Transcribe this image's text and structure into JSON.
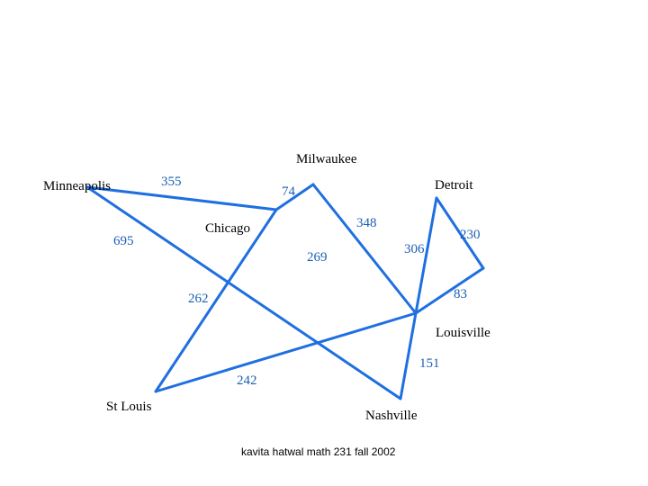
{
  "nodes": [
    {
      "label": "Minneapolis"
    },
    {
      "label": "Milwaukee"
    },
    {
      "label": "Detroit"
    },
    {
      "label": "Chicago"
    },
    {
      "label": "Louisville"
    },
    {
      "label": "St Louis"
    },
    {
      "label": "Nashville"
    }
  ],
  "edges": [
    {
      "label": 355
    },
    {
      "label": 74
    },
    {
      "label": 348
    },
    {
      "label": 695
    },
    {
      "label": 269
    },
    {
      "label": 306
    },
    {
      "label": 230
    },
    {
      "label": 83
    },
    {
      "label": 262
    },
    {
      "label": 151
    },
    {
      "label": 242
    }
  ],
  "footer": "kavita hatwal math 231 fall 2002"
}
